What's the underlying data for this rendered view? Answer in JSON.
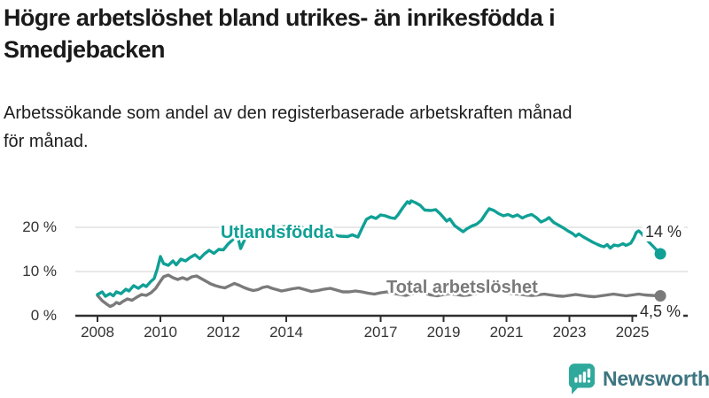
{
  "header": {
    "title": "Högre arbetslöshet bland utrikes- än inrikesfödda i\nSmedjebacken",
    "subtitle": "Arbetssökande som andel av den registerbaserade arbetskraften månad\nför månad."
  },
  "chart_data": {
    "type": "line",
    "title": "Högre arbetslöshet bland utrikes- än inrikesfödda i Smedjebacken",
    "subtitle": "Arbetssökande som andel av den registerbaserade arbetskraften månad för månad.",
    "unit": "%",
    "x_ticks": [
      2008,
      2010,
      2012,
      2014,
      2017,
      2019,
      2021,
      2023,
      2025
    ],
    "y_ticks": [
      0,
      10,
      20
    ],
    "y_tick_labels": [
      "0 %",
      "10 %",
      "20 %"
    ],
    "xlim": [
      2007.3,
      2026.7
    ],
    "ylim": [
      0,
      28
    ],
    "grid": "horizontal",
    "grid_color": "#d9d9d9",
    "axis_color": "#2e2e2e",
    "legend_position": "inline-labels",
    "series": [
      {
        "name": "Utlandsfödda",
        "color": "#10a096",
        "end_label": "14 %",
        "end_value": 14.0,
        "points": [
          [
            2008.0,
            4.8
          ],
          [
            2008.15,
            5.4
          ],
          [
            2008.25,
            4.4
          ],
          [
            2008.4,
            5.0
          ],
          [
            2008.5,
            4.5
          ],
          [
            2008.6,
            5.4
          ],
          [
            2008.75,
            5.0
          ],
          [
            2008.9,
            6.0
          ],
          [
            2009.0,
            5.6
          ],
          [
            2009.15,
            6.8
          ],
          [
            2009.3,
            6.2
          ],
          [
            2009.45,
            7.0
          ],
          [
            2009.55,
            6.6
          ],
          [
            2009.7,
            7.8
          ],
          [
            2009.8,
            8.4
          ],
          [
            2009.9,
            10.6
          ],
          [
            2010.0,
            13.4
          ],
          [
            2010.1,
            11.8
          ],
          [
            2010.25,
            11.4
          ],
          [
            2010.4,
            12.4
          ],
          [
            2010.5,
            11.5
          ],
          [
            2010.65,
            12.8
          ],
          [
            2010.8,
            12.4
          ],
          [
            2010.95,
            13.2
          ],
          [
            2011.1,
            13.8
          ],
          [
            2011.25,
            12.9
          ],
          [
            2011.4,
            14.0
          ],
          [
            2011.55,
            14.8
          ],
          [
            2011.7,
            14.1
          ],
          [
            2011.85,
            15.0
          ],
          [
            2012.0,
            14.9
          ],
          [
            2012.15,
            16.2
          ],
          [
            2012.3,
            17.2
          ],
          [
            2012.42,
            19.0
          ],
          [
            2012.55,
            15.2
          ],
          [
            2012.7,
            17.6
          ],
          [
            2012.85,
            18.4
          ],
          [
            2013.0,
            18.8
          ],
          [
            2013.25,
            19.8
          ],
          [
            2013.5,
            19.3
          ],
          [
            2013.75,
            20.0
          ],
          [
            2014.0,
            20.2
          ],
          [
            2014.25,
            19.6
          ],
          [
            2014.5,
            20.0
          ],
          [
            2014.75,
            19.4
          ],
          [
            2015.0,
            19.0
          ],
          [
            2015.25,
            18.6
          ],
          [
            2015.5,
            18.3
          ],
          [
            2015.7,
            18.0
          ],
          [
            2015.95,
            17.9
          ],
          [
            2016.1,
            18.3
          ],
          [
            2016.28,
            17.8
          ],
          [
            2016.45,
            20.4
          ],
          [
            2016.55,
            21.8
          ],
          [
            2016.7,
            22.4
          ],
          [
            2016.85,
            22.0
          ],
          [
            2017.0,
            22.8
          ],
          [
            2017.15,
            22.6
          ],
          [
            2017.3,
            22.2
          ],
          [
            2017.45,
            22.0
          ],
          [
            2017.55,
            22.8
          ],
          [
            2017.7,
            24.4
          ],
          [
            2017.85,
            25.8
          ],
          [
            2017.92,
            25.4
          ],
          [
            2017.97,
            26.0
          ],
          [
            2018.1,
            25.6
          ],
          [
            2018.25,
            25.0
          ],
          [
            2018.4,
            23.9
          ],
          [
            2018.6,
            23.8
          ],
          [
            2018.75,
            24.0
          ],
          [
            2018.9,
            23.0
          ],
          [
            2019.0,
            22.2
          ],
          [
            2019.1,
            21.4
          ],
          [
            2019.2,
            21.9
          ],
          [
            2019.35,
            20.4
          ],
          [
            2019.5,
            19.6
          ],
          [
            2019.62,
            19.0
          ],
          [
            2019.75,
            19.7
          ],
          [
            2019.9,
            20.3
          ],
          [
            2020.05,
            20.7
          ],
          [
            2020.2,
            21.6
          ],
          [
            2020.35,
            23.2
          ],
          [
            2020.45,
            24.2
          ],
          [
            2020.6,
            23.8
          ],
          [
            2020.75,
            23.1
          ],
          [
            2020.9,
            22.6
          ],
          [
            2021.05,
            22.9
          ],
          [
            2021.2,
            22.4
          ],
          [
            2021.35,
            22.8
          ],
          [
            2021.5,
            22.1
          ],
          [
            2021.65,
            22.6
          ],
          [
            2021.8,
            22.9
          ],
          [
            2021.95,
            22.2
          ],
          [
            2022.1,
            21.2
          ],
          [
            2022.25,
            21.7
          ],
          [
            2022.35,
            22.2
          ],
          [
            2022.5,
            21.1
          ],
          [
            2022.65,
            20.5
          ],
          [
            2022.8,
            19.9
          ],
          [
            2022.95,
            19.2
          ],
          [
            2023.1,
            18.6
          ],
          [
            2023.2,
            18.0
          ],
          [
            2023.3,
            18.5
          ],
          [
            2023.45,
            17.8
          ],
          [
            2023.6,
            17.2
          ],
          [
            2023.75,
            16.6
          ],
          [
            2023.9,
            16.1
          ],
          [
            2024.0,
            15.8
          ],
          [
            2024.1,
            15.6
          ],
          [
            2024.2,
            16.1
          ],
          [
            2024.3,
            15.3
          ],
          [
            2024.42,
            16.0
          ],
          [
            2024.55,
            15.8
          ],
          [
            2024.7,
            16.3
          ],
          [
            2024.8,
            15.9
          ],
          [
            2024.95,
            16.4
          ],
          [
            2025.05,
            17.6
          ],
          [
            2025.12,
            18.8
          ],
          [
            2025.2,
            19.2
          ],
          [
            2025.3,
            18.6
          ],
          [
            2025.4,
            17.6
          ],
          [
            2025.89,
            14.0
          ]
        ]
      },
      {
        "name": "Total arbetslöshet",
        "color": "#7a7a7a",
        "end_label": "4,5 %",
        "end_value": 4.5,
        "points": [
          [
            2008.0,
            4.6
          ],
          [
            2008.15,
            3.4
          ],
          [
            2008.3,
            2.6
          ],
          [
            2008.4,
            2.1
          ],
          [
            2008.5,
            2.4
          ],
          [
            2008.6,
            3.0
          ],
          [
            2008.7,
            2.7
          ],
          [
            2008.8,
            3.2
          ],
          [
            2008.95,
            3.8
          ],
          [
            2009.1,
            3.5
          ],
          [
            2009.25,
            4.2
          ],
          [
            2009.4,
            4.8
          ],
          [
            2009.55,
            4.6
          ],
          [
            2009.7,
            5.2
          ],
          [
            2009.85,
            6.2
          ],
          [
            2010.0,
            7.8
          ],
          [
            2010.1,
            8.8
          ],
          [
            2010.25,
            9.2
          ],
          [
            2010.4,
            8.6
          ],
          [
            2010.55,
            8.2
          ],
          [
            2010.7,
            8.6
          ],
          [
            2010.85,
            8.2
          ],
          [
            2011.0,
            8.8
          ],
          [
            2011.15,
            9.0
          ],
          [
            2011.3,
            8.4
          ],
          [
            2011.45,
            7.8
          ],
          [
            2011.6,
            7.2
          ],
          [
            2011.75,
            6.8
          ],
          [
            2011.9,
            6.5
          ],
          [
            2012.05,
            6.3
          ],
          [
            2012.2,
            6.8
          ],
          [
            2012.35,
            7.3
          ],
          [
            2012.5,
            6.9
          ],
          [
            2012.65,
            6.4
          ],
          [
            2012.8,
            6.0
          ],
          [
            2012.95,
            5.7
          ],
          [
            2013.1,
            5.9
          ],
          [
            2013.25,
            6.4
          ],
          [
            2013.4,
            6.6
          ],
          [
            2013.55,
            6.2
          ],
          [
            2013.7,
            5.9
          ],
          [
            2013.85,
            5.6
          ],
          [
            2014.0,
            5.8
          ],
          [
            2014.2,
            6.1
          ],
          [
            2014.4,
            6.3
          ],
          [
            2014.6,
            5.9
          ],
          [
            2014.8,
            5.5
          ],
          [
            2015.0,
            5.7
          ],
          [
            2015.2,
            6.0
          ],
          [
            2015.4,
            6.2
          ],
          [
            2015.6,
            5.8
          ],
          [
            2015.8,
            5.4
          ],
          [
            2016.0,
            5.4
          ],
          [
            2016.2,
            5.6
          ],
          [
            2016.4,
            5.4
          ],
          [
            2016.6,
            5.1
          ],
          [
            2016.8,
            4.9
          ],
          [
            2017.0,
            5.2
          ],
          [
            2017.2,
            5.4
          ],
          [
            2017.4,
            5.1
          ],
          [
            2017.6,
            4.8
          ],
          [
            2017.8,
            4.6
          ],
          [
            2018.0,
            5.0
          ],
          [
            2018.2,
            5.3
          ],
          [
            2018.4,
            5.1
          ],
          [
            2018.6,
            4.7
          ],
          [
            2018.8,
            4.5
          ],
          [
            2019.0,
            4.8
          ],
          [
            2019.2,
            5.0
          ],
          [
            2019.4,
            4.8
          ],
          [
            2019.6,
            4.6
          ],
          [
            2019.8,
            4.7
          ],
          [
            2020.0,
            5.0
          ],
          [
            2020.2,
            5.5
          ],
          [
            2020.4,
            6.0
          ],
          [
            2020.6,
            5.8
          ],
          [
            2020.8,
            5.5
          ],
          [
            2021.0,
            5.2
          ],
          [
            2021.2,
            5.0
          ],
          [
            2021.4,
            4.9
          ],
          [
            2021.6,
            4.7
          ],
          [
            2021.8,
            4.6
          ],
          [
            2022.0,
            4.7
          ],
          [
            2022.2,
            4.9
          ],
          [
            2022.4,
            4.7
          ],
          [
            2022.6,
            4.5
          ],
          [
            2022.8,
            4.4
          ],
          [
            2023.0,
            4.6
          ],
          [
            2023.2,
            4.8
          ],
          [
            2023.4,
            4.6
          ],
          [
            2023.6,
            4.4
          ],
          [
            2023.8,
            4.3
          ],
          [
            2024.0,
            4.5
          ],
          [
            2024.2,
            4.7
          ],
          [
            2024.4,
            4.9
          ],
          [
            2024.6,
            4.7
          ],
          [
            2024.8,
            4.5
          ],
          [
            2025.0,
            4.7
          ],
          [
            2025.2,
            4.9
          ],
          [
            2025.4,
            4.7
          ],
          [
            2025.6,
            4.6
          ],
          [
            2025.89,
            4.5
          ]
        ]
      }
    ]
  },
  "branding": {
    "logo_text": "Newsworthy",
    "logo_icon": "bar-chart-speech-bubble-icon",
    "icon_color": "#2fa99b",
    "text_color": "#3d7580"
  }
}
